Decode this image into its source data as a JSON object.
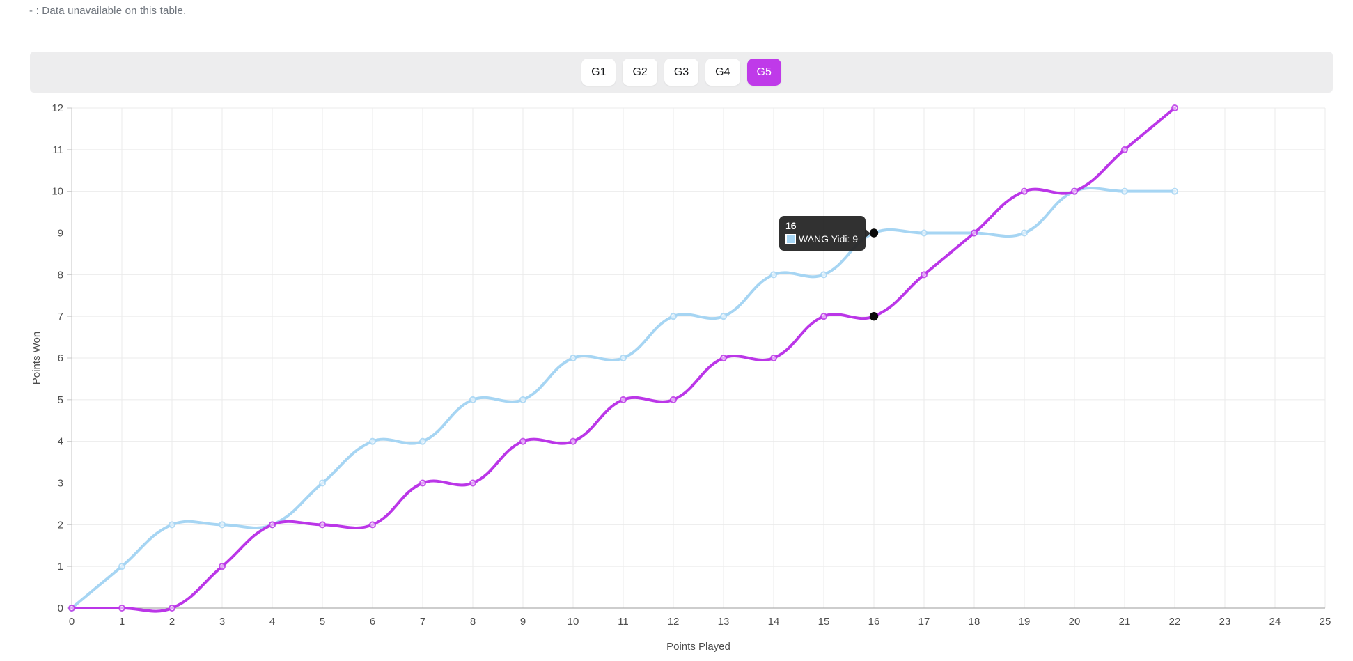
{
  "note": {
    "text": "- : Data unavailable on this table."
  },
  "tabs": {
    "items": [
      "G1",
      "G2",
      "G3",
      "G4",
      "G5"
    ],
    "active": "G5"
  },
  "colors": {
    "accent": "#bf3ae9",
    "blue_series": "#a6d5f3",
    "magenta_series": "#bb36e8",
    "grid": "#ebebeb",
    "x_axis_line": "#9b9b9b",
    "y_axis_line": "#c4c4c4",
    "tick_mark": "#c9c9c9",
    "tick_text": "#4d4d4d",
    "toolbar_bg": "#ededee",
    "tooltip_bg": "#262626",
    "hover_dot": "#0a0a0a"
  },
  "chart_data": {
    "type": "line",
    "title": "",
    "xlabel": "Points Played",
    "ylabel": "Points Won",
    "xlim": [
      0,
      25
    ],
    "ylim": [
      0,
      12
    ],
    "grid": true,
    "legend_position": "none",
    "x_tick_labels": [
      "0",
      "1",
      "2",
      "3",
      "4",
      "5",
      "6",
      "7",
      "8",
      "9",
      "10",
      "11",
      "12",
      "13",
      "14",
      "15",
      "16",
      "17",
      "18",
      "19",
      "20",
      "21",
      "22",
      "23",
      "24",
      "25"
    ],
    "y_tick_labels": [
      "0",
      "1",
      "2",
      "3",
      "4",
      "5",
      "6",
      "7",
      "8",
      "9",
      "10",
      "11",
      "12"
    ],
    "x": [
      0,
      1,
      2,
      3,
      4,
      5,
      6,
      7,
      8,
      9,
      10,
      11,
      12,
      13,
      14,
      15,
      16,
      17,
      18,
      19,
      20,
      21,
      22
    ],
    "series": [
      {
        "name": "WANG Yidi",
        "color": "#a6d5f3",
        "values": [
          0,
          1,
          2,
          2,
          2,
          3,
          4,
          4,
          5,
          5,
          6,
          6,
          7,
          7,
          8,
          8,
          9,
          9,
          9,
          9,
          10,
          10,
          10
        ]
      },
      {
        "name": "",
        "color": "#bb36e8",
        "values": [
          0,
          0,
          0,
          1,
          2,
          2,
          2,
          3,
          3,
          4,
          4,
          5,
          5,
          6,
          6,
          7,
          7,
          8,
          9,
          10,
          10,
          11,
          12
        ]
      }
    ],
    "hover": {
      "x": 16,
      "points": [
        {
          "series": 0,
          "y": 9
        },
        {
          "series": 1,
          "y": 7
        }
      ]
    }
  },
  "tooltip": {
    "title": "16",
    "items": [
      {
        "text": "WANG Yidi: 9",
        "swatch_color": "#a6d5f3"
      }
    ]
  }
}
